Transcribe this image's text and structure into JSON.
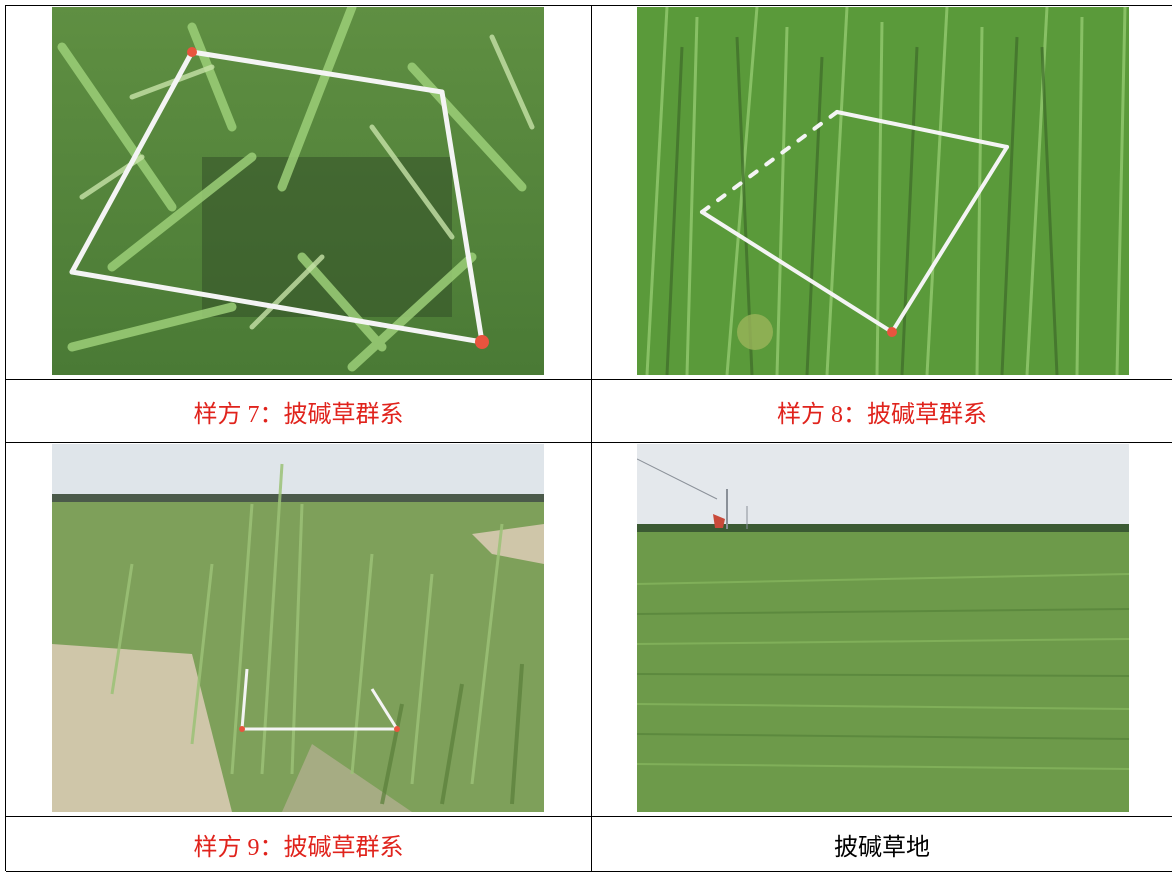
{
  "captions": {
    "q7": "样方 7：披碱草群系",
    "q8": "样方 8：披碱草群系",
    "q9": "样方 9：披碱草群系",
    "field": "披碱草地"
  },
  "colors": {
    "caption_red": "#e0231c",
    "caption_black": "#000000",
    "grass_dark": "#3e6b2a",
    "grass_light": "#8dc56a",
    "sky": "#dfe5ea"
  }
}
